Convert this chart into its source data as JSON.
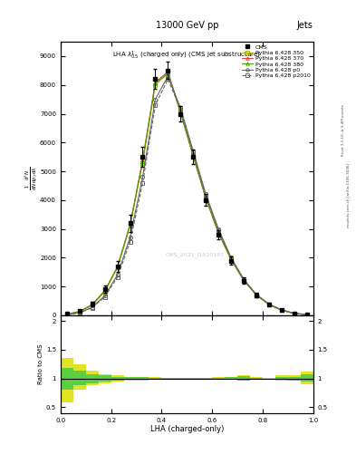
{
  "title": "13000 GeV pp",
  "title_right": "Jets",
  "plot_title": "LHA $\\lambda^{1}_{0.5}$ (charged only) (CMS jet substructure)",
  "xlabel": "LHA (charged-only)",
  "ylabel_lines": [
    "mathrm d$^2$N",
    "mathrm d p_T mathrm d lambda"
  ],
  "ylabel_ratio": "Ratio to CMS",
  "watermark": "CMS_2021_I1920187",
  "side_text1": "Rivet 3.1.10, ≥ 3.4M events",
  "side_text2": "mcplots.cern.ch [arXiv:1306.3436]",
  "x_edges": [
    0.0,
    0.05,
    0.1,
    0.15,
    0.2,
    0.25,
    0.3,
    0.35,
    0.4,
    0.45,
    0.5,
    0.55,
    0.6,
    0.65,
    0.7,
    0.75,
    0.8,
    0.85,
    0.9,
    0.95,
    1.0
  ],
  "cms_y": [
    50,
    150,
    400,
    900,
    1700,
    3200,
    5500,
    8200,
    8500,
    7000,
    5500,
    4000,
    2800,
    1900,
    1200,
    700,
    380,
    180,
    70,
    20
  ],
  "cms_yerr": [
    15,
    40,
    80,
    120,
    200,
    300,
    350,
    350,
    300,
    280,
    250,
    200,
    170,
    140,
    110,
    80,
    50,
    30,
    20,
    10
  ],
  "py350_y": [
    30,
    120,
    350,
    820,
    1650,
    3100,
    5300,
    8000,
    8400,
    7100,
    5600,
    4100,
    2900,
    1950,
    1220,
    700,
    370,
    170,
    65,
    18
  ],
  "py370_y": [
    40,
    135,
    375,
    860,
    1680,
    3150,
    5400,
    8100,
    8450,
    7050,
    5520,
    4050,
    2850,
    1930,
    1210,
    705,
    375,
    175,
    68,
    19
  ],
  "py380_y": [
    35,
    128,
    360,
    840,
    1660,
    3120,
    5350,
    8050,
    8420,
    7020,
    5540,
    4070,
    2870,
    1940,
    1215,
    702,
    372,
    173,
    67,
    18
  ],
  "pyp0_y": [
    20,
    90,
    280,
    680,
    1400,
    2700,
    4800,
    7500,
    8300,
    7200,
    5700,
    4200,
    3000,
    2000,
    1250,
    720,
    390,
    185,
    72,
    21
  ],
  "pyp2010_y": [
    18,
    85,
    260,
    640,
    1320,
    2550,
    4600,
    7300,
    8200,
    7150,
    5650,
    4150,
    2950,
    1980,
    1240,
    715,
    385,
    180,
    70,
    20
  ],
  "color_350": "#aaaa00",
  "color_370": "#dd4444",
  "color_380": "#44aa00",
  "color_p0": "#666666",
  "color_p2010": "#666666",
  "ylim_main": [
    0,
    9500
  ],
  "yticks_main": [
    0,
    1000,
    2000,
    3000,
    4000,
    5000,
    6000,
    7000,
    8000,
    9000
  ],
  "ylim_ratio": [
    0.4,
    2.1
  ],
  "ratio_yticks": [
    0.5,
    1.0,
    1.5,
    2.0
  ],
  "ratio_yticklabels": [
    "0.5",
    "1",
    "1.5",
    "2"
  ],
  "ratio_outer_lo": [
    0.58,
    0.8,
    0.88,
    0.92,
    0.95,
    0.97,
    0.97,
    0.98,
    0.99,
    0.99,
    1.0,
    1.0,
    1.0,
    0.99,
    0.97,
    0.99,
    1.01,
    0.96,
    0.96,
    0.9
  ],
  "ratio_outer_hi": [
    1.35,
    1.25,
    1.13,
    1.08,
    1.05,
    1.03,
    1.03,
    1.02,
    1.01,
    1.01,
    1.01,
    1.01,
    1.02,
    1.03,
    1.05,
    1.02,
    1.0,
    1.06,
    1.05,
    1.12
  ],
  "ratio_inner_lo": [
    0.8,
    0.88,
    0.92,
    0.95,
    0.97,
    0.98,
    0.98,
    0.99,
    0.99,
    0.99,
    1.0,
    1.0,
    1.0,
    0.99,
    0.97,
    0.99,
    1.0,
    0.98,
    0.97,
    0.94
  ],
  "ratio_inner_hi": [
    1.18,
    1.14,
    1.08,
    1.05,
    1.03,
    1.02,
    1.02,
    1.01,
    1.01,
    1.01,
    1.01,
    1.01,
    1.01,
    1.02,
    1.04,
    1.01,
    1.0,
    1.03,
    1.03,
    1.07
  ]
}
